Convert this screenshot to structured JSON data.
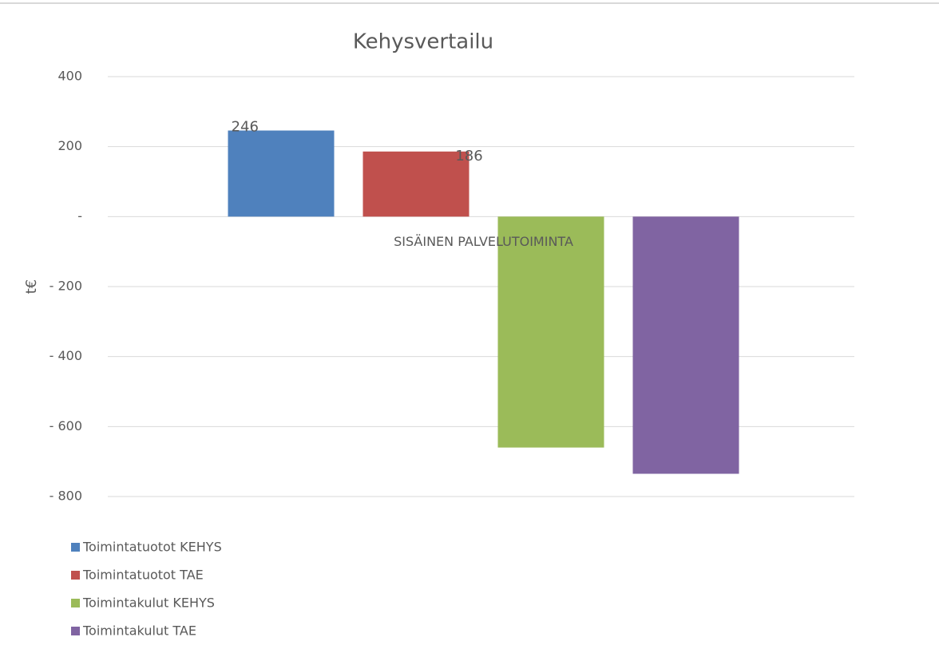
{
  "chart_data": {
    "type": "bar",
    "title": "Kehysvertailu",
    "y_label": "t€",
    "categories": [
      "SISÄINEN PALVELUTOIMINTA"
    ],
    "series": [
      {
        "name": "Toimintatuotot KEHYS",
        "color": "#4f81bd",
        "values": [
          246
        ],
        "show_labels": true
      },
      {
        "name": "Toimintatuotot TAE",
        "color": "#c0504d",
        "values": [
          186
        ],
        "show_labels": true
      },
      {
        "name": "Toimintakulut KEHYS",
        "color": "#9bbb59",
        "values": [
          -660
        ],
        "show_labels": false
      },
      {
        "name": "Toimintakulut TAE",
        "color": "#8064a2",
        "values": [
          -735
        ],
        "show_labels": false
      }
    ],
    "ylim": [
      -800,
      400
    ],
    "yticks": [
      400,
      200,
      {
        "value": 0,
        "label": "-"
      },
      {
        "value": -200,
        "label": "- 200"
      },
      {
        "value": -400,
        "label": "- 400"
      },
      {
        "value": -600,
        "label": "- 600"
      },
      {
        "value": -800,
        "label": "- 800"
      }
    ],
    "grid": true,
    "legend": "bottom-left"
  }
}
